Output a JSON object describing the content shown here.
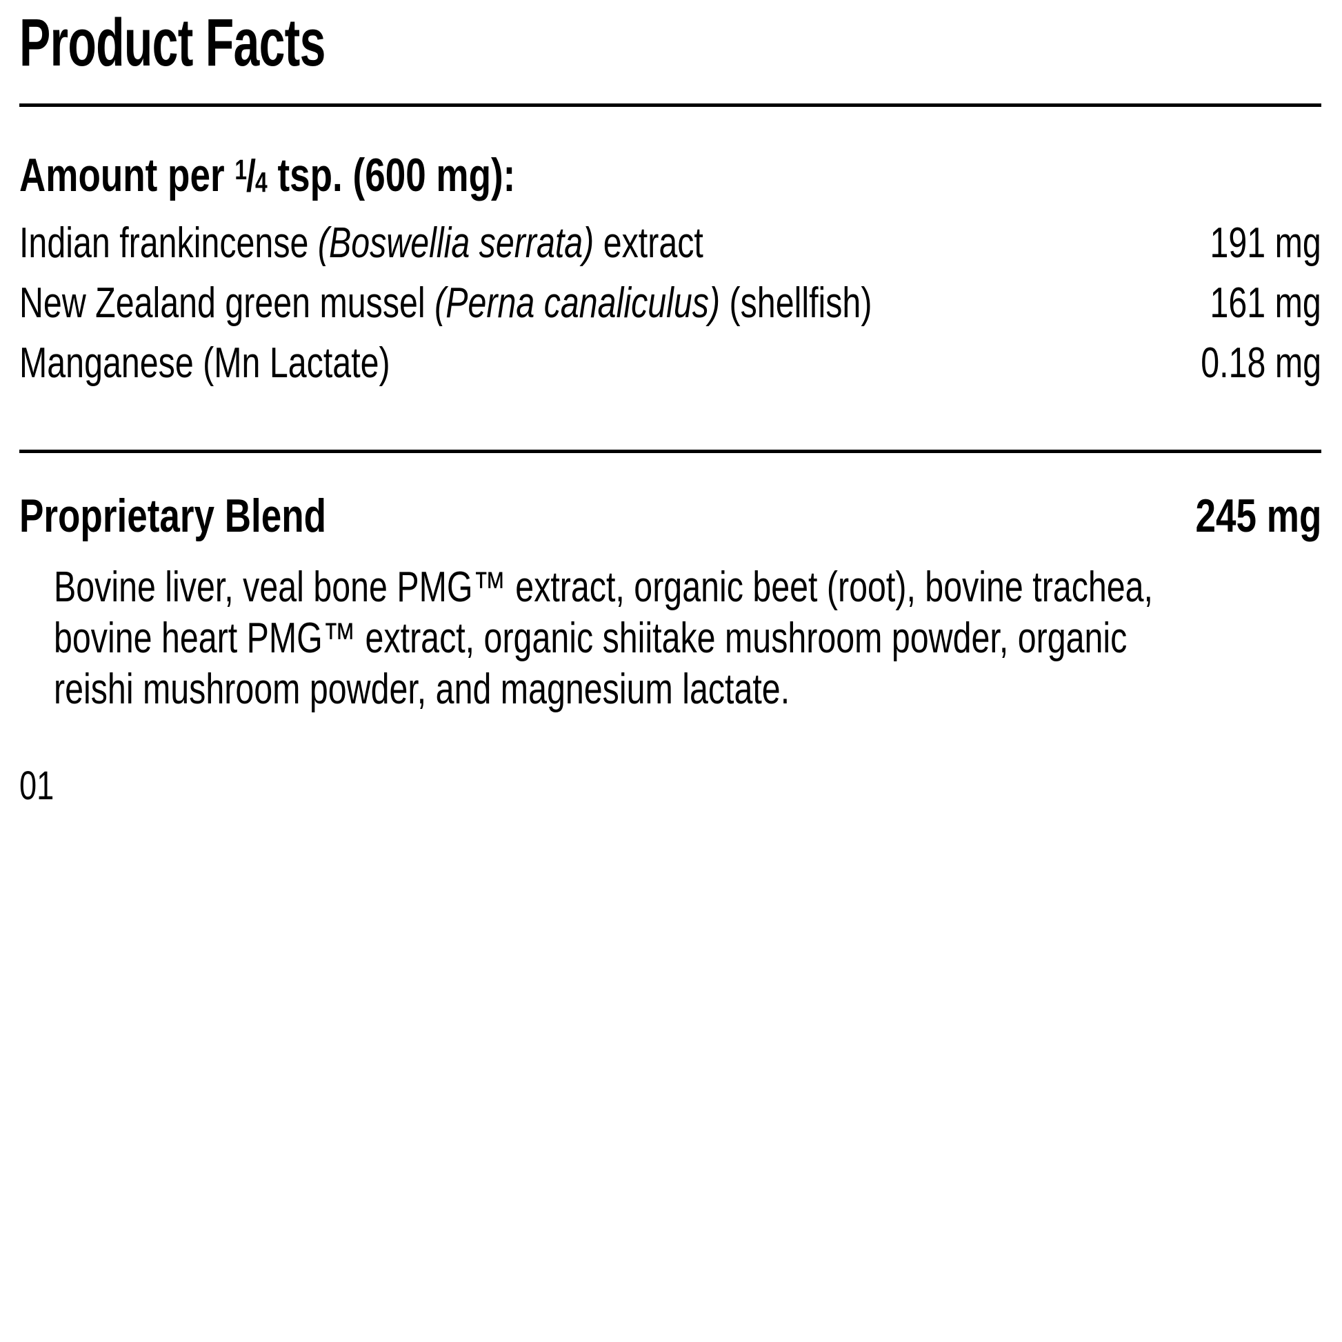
{
  "page": {
    "background_color": "#ffffff",
    "text_color": "#000000"
  },
  "title": "Product Facts",
  "amount_heading": {
    "prefix": "Amount per ",
    "fraction": {
      "numerator": "1",
      "slash": "/",
      "denominator": "4"
    },
    "suffix": " tsp. (600 mg):"
  },
  "facts": {
    "rows": [
      {
        "segments": [
          {
            "text": "Indian frankincense ",
            "style": "regular"
          },
          {
            "text": "(Boswellia serrata)",
            "style": "italic"
          },
          {
            "text": " extract",
            "style": "regular"
          }
        ],
        "value": "191 mg"
      },
      {
        "segments": [
          {
            "text": "New Zealand green mussel ",
            "style": "regular"
          },
          {
            "text": "(Perna canaliculus)",
            "style": "italic"
          },
          {
            "text": " (shellfish)",
            "style": "regular"
          }
        ],
        "value": "161 mg"
      },
      {
        "segments": [
          {
            "text": "Manganese (Mn Lactate)",
            "style": "regular"
          }
        ],
        "value": "0.18 mg"
      }
    ]
  },
  "proprietary_blend": {
    "label": "Proprietary Blend",
    "value": "245 mg",
    "lines": [
      "Bovine liver, veal bone PMG™ extract, organic beet (root), bovine trachea,",
      "bovine heart PMG™ extract, organic shiitake mushroom powder, organic",
      "reishi mushroom powder, and magnesium lactate."
    ]
  },
  "footer_code": "01"
}
